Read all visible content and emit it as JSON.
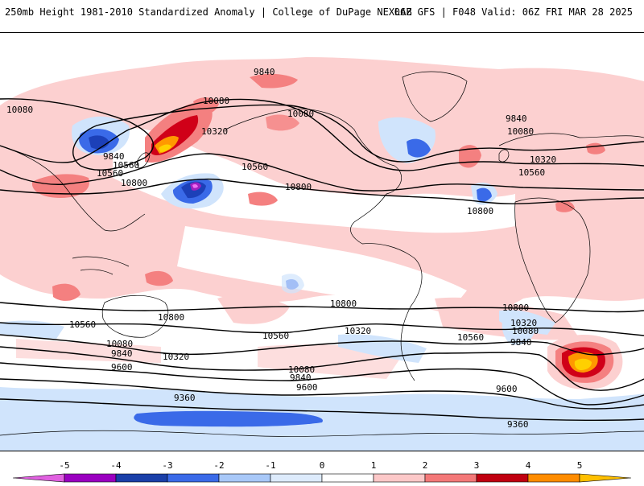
{
  "header": {
    "left_title": "250mb Height 1981-2010 Standardized Anomaly | College of DuPage NEXLAB",
    "right_title": "06Z GFS | F048 Valid: 06Z FRI MAR 28 2025"
  },
  "contours": {
    "labels": [
      "9840",
      "10080",
      "10080",
      "10320",
      "9840",
      "10560",
      "10800",
      "10560",
      "10800",
      "10080",
      "10320",
      "10560",
      "9840",
      "10080",
      "10320",
      "10560",
      "10800",
      "10800",
      "10560",
      "10800",
      "10320",
      "10560",
      "10800",
      "10320",
      "10080",
      "9840",
      "10560",
      "10080",
      "9840",
      "9600",
      "10320",
      "10080",
      "9840",
      "9600",
      "9600",
      "9360",
      "9360"
    ],
    "line_color": "#000000"
  },
  "colorbar": {
    "tick_labels": [
      "-5",
      "-4",
      "-3",
      "-2",
      "-1",
      "0",
      "1",
      "2",
      "3",
      "4",
      "5"
    ],
    "colors": [
      "#e060e0",
      "#9a00c0",
      "#1a3fa8",
      "#3a6ae8",
      "#a8c8f8",
      "#ddebfc",
      "#ffffff",
      "#ffffff",
      "#fcc8c8",
      "#f47878",
      "#c00010",
      "#ff8c00",
      "#ffc000"
    ]
  },
  "anomaly_colors": {
    "light_pink": "#fcd0d0",
    "pink": "#f48080",
    "red": "#d00018",
    "dark_red": "#a00010",
    "orange": "#ff9800",
    "yellow": "#ffd000",
    "light_blue": "#d0e4fc",
    "blue": "#6090f0",
    "dark_blue": "#1c40b8",
    "purple": "#a020c0",
    "magenta": "#f070f0"
  }
}
